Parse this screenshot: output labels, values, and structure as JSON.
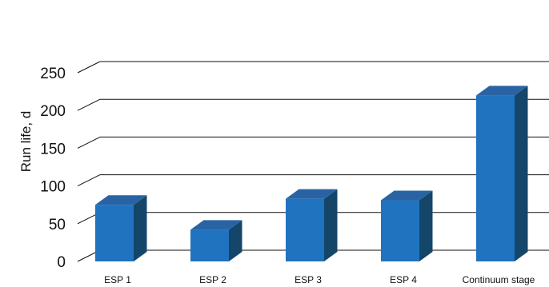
{
  "chart_data": {
    "type": "bar",
    "style": "3d-bars",
    "categories": [
      "ESP 1",
      "ESP 2",
      "ESP 3",
      "ESP 4",
      "Continuum stage"
    ],
    "values": [
      75,
      42,
      83,
      81,
      220
    ],
    "ylabel": "Run life, d",
    "xlabel": "",
    "title": "",
    "ylim": [
      0,
      250
    ],
    "yticks": [
      "0",
      "50",
      "100",
      "150",
      "200",
      "250"
    ],
    "grid": true,
    "colors": {
      "front": "#1f73bf",
      "top": "#2a63a4",
      "side": "#14466a",
      "grid": "#111111"
    }
  }
}
